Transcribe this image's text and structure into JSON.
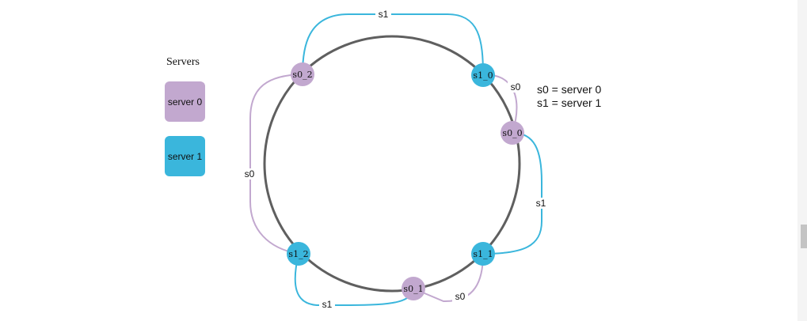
{
  "colors": {
    "server0": "#c2a8cf",
    "server1": "#3ab6dc",
    "ring": "#5f5f5f",
    "text": "#111111"
  },
  "legend": {
    "title": "Servers",
    "items": [
      {
        "label": "server 0",
        "server": "s0"
      },
      {
        "label": "server 1",
        "server": "s1"
      }
    ]
  },
  "key_note": {
    "line1": "s0 = server 0",
    "line2": "s1 = server 1"
  },
  "nodes": [
    {
      "id": "s0_2",
      "server": "s0"
    },
    {
      "id": "s1_0",
      "server": "s1"
    },
    {
      "id": "s0_0",
      "server": "s0"
    },
    {
      "id": "s1_1",
      "server": "s1"
    },
    {
      "id": "s0_1",
      "server": "s0"
    },
    {
      "id": "s1_2",
      "server": "s1"
    }
  ],
  "edges": [
    {
      "from": "s0_2",
      "to": "s1_0",
      "label": "s1",
      "server": "s1"
    },
    {
      "from": "s1_0",
      "to": "s0_0",
      "label": "s0",
      "server": "s0"
    },
    {
      "from": "s0_0",
      "to": "s1_1",
      "label": "s1",
      "server": "s1"
    },
    {
      "from": "s1_1",
      "to": "s0_1",
      "label": "s0",
      "server": "s0"
    },
    {
      "from": "s0_1",
      "to": "s1_2",
      "label": "s1",
      "server": "s1"
    },
    {
      "from": "s1_2",
      "to": "s0_2",
      "label": "s0",
      "server": "s0"
    }
  ]
}
